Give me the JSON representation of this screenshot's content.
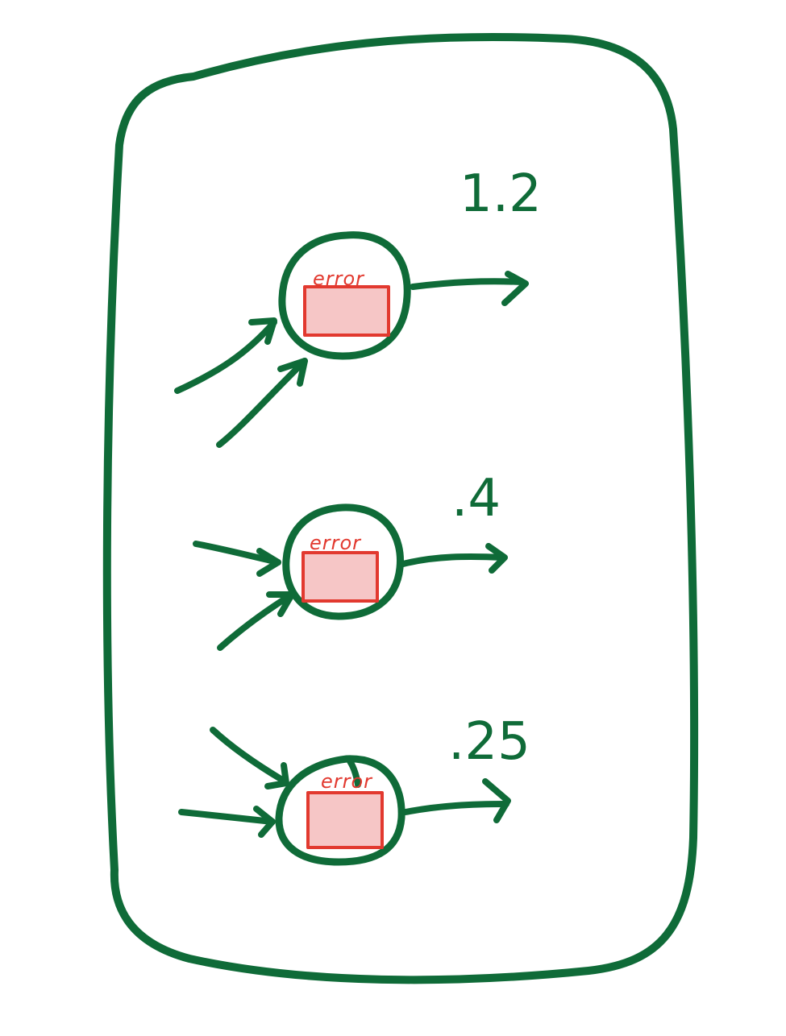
{
  "colors": {
    "stroke": "#0f6b38",
    "error_outline": "#e2392f",
    "error_fill": "#f6c6c6",
    "background": "#ffffff"
  },
  "nodes": [
    {
      "error_label": "error",
      "value_label": "1.2"
    },
    {
      "error_label": "error",
      "value_label": ".4"
    },
    {
      "error_label": "error",
      "value_label": ".25"
    }
  ]
}
